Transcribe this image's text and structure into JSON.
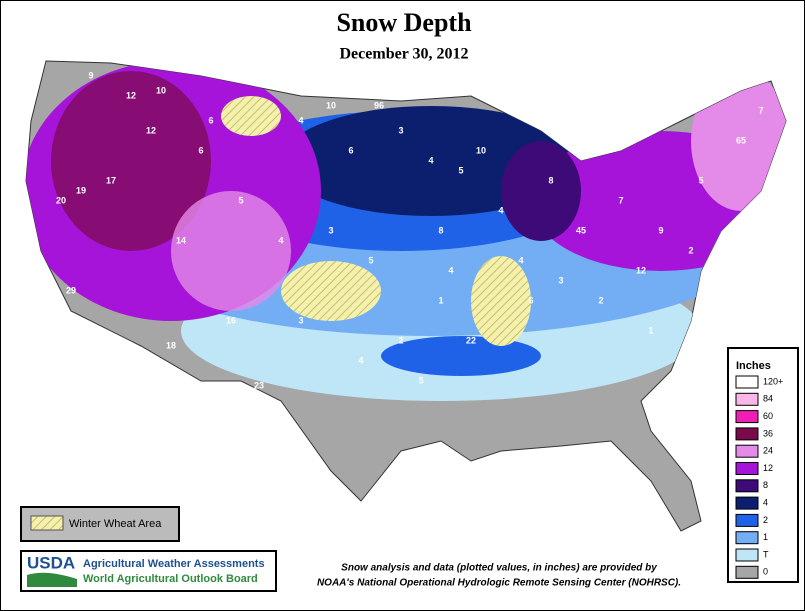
{
  "header": {
    "title": "Snow Depth",
    "subtitle": "December 30, 2012"
  },
  "legend": {
    "title": "Inches",
    "items": [
      {
        "label": "120+",
        "color": "#ffffff"
      },
      {
        "label": "84",
        "color": "#f9b6e6"
      },
      {
        "label": "60",
        "color": "#f01fb4"
      },
      {
        "label": "36",
        "color": "#7a0a4a"
      },
      {
        "label": "24",
        "color": "#e48ae8"
      },
      {
        "label": "12",
        "color": "#a514d8"
      },
      {
        "label": "8",
        "color": "#3d0a78"
      },
      {
        "label": "4",
        "color": "#0c1f6e"
      },
      {
        "label": "2",
        "color": "#1f62e8"
      },
      {
        "label": "1",
        "color": "#73aef5"
      },
      {
        "label": "T",
        "color": "#bfe6f7"
      },
      {
        "label": "0",
        "color": "#a6a6a6"
      }
    ]
  },
  "wheat_legend": {
    "label": "Winter Wheat Area"
  },
  "agency": {
    "logo": "USDA",
    "line1": "Agricultural Weather Assessments",
    "line2": "World Agricultural Outlook Board"
  },
  "credit": {
    "line1": "Snow analysis and data (plotted values, in inches) are provided by",
    "line2": "NOAA's National Operational Hydrologic Remote Sensing Center (NOHRSC)."
  },
  "map_values": [
    9,
    12,
    10,
    17,
    19,
    6,
    5,
    14,
    20,
    4,
    10,
    96,
    6,
    3,
    4,
    5,
    4,
    8,
    45,
    7,
    9,
    5,
    2,
    12,
    3,
    4,
    1,
    2,
    4,
    5,
    22,
    6,
    23,
    2,
    18,
    16,
    29,
    4,
    3,
    5,
    8,
    10,
    65,
    7,
    2,
    1,
    3,
    4,
    6,
    12
  ]
}
